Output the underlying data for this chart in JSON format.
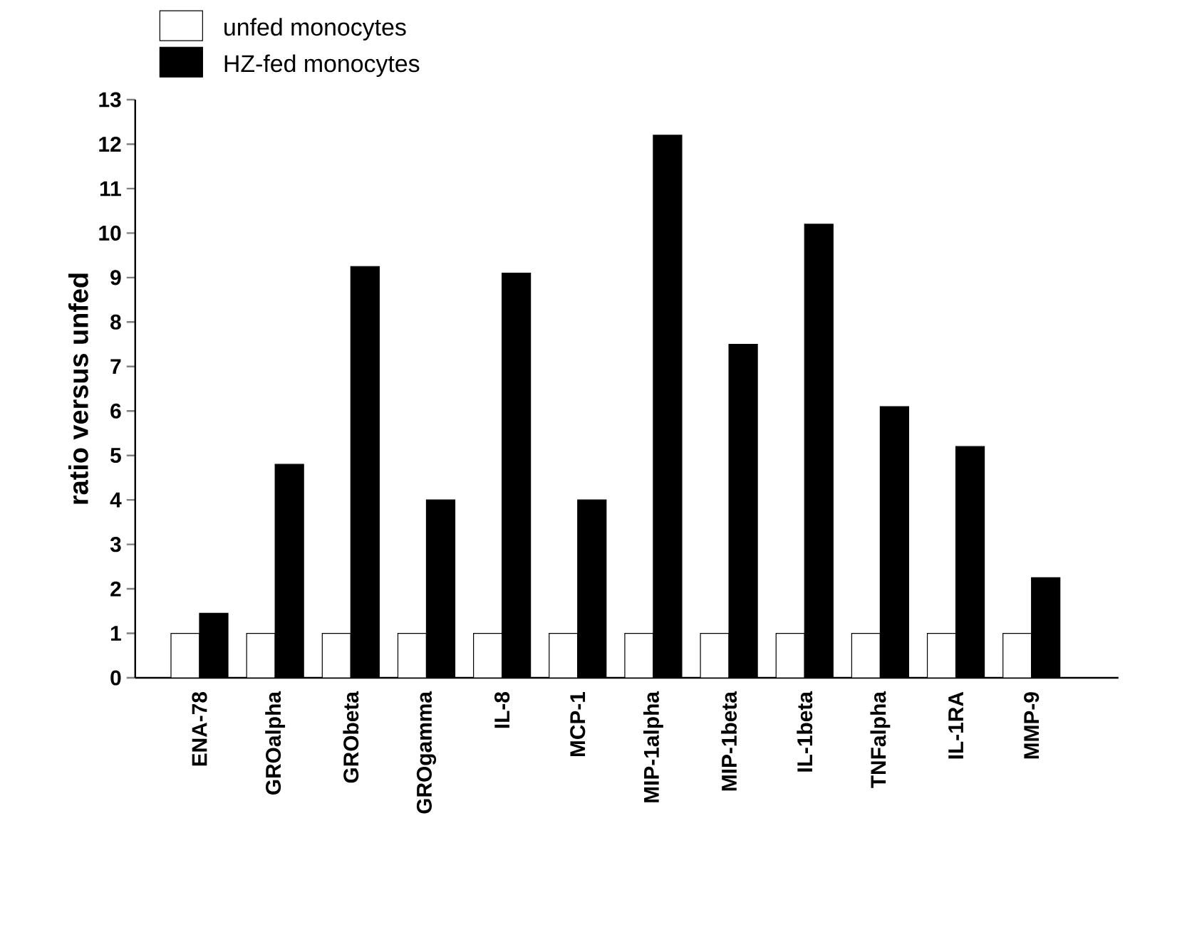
{
  "chart_data": {
    "type": "bar",
    "ylabel": "ratio versus unfed",
    "categories": [
      "ENA-78",
      "GROalpha",
      "GRObeta",
      "GROgamma",
      "IL-8",
      "MCP-1",
      "MIP-1alpha",
      "MIP-1beta",
      "IL-1beta",
      "TNFalpha",
      "IL-1RA",
      "MMP-9"
    ],
    "series": [
      {
        "name": "unfed monocytes",
        "color": "#ffffff",
        "values": [
          1,
          1,
          1,
          1,
          1,
          1,
          1,
          1,
          1,
          1,
          1,
          1
        ]
      },
      {
        "name": "HZ-fed monocytes",
        "color": "#000000",
        "values": [
          1.45,
          4.8,
          9.25,
          4.0,
          9.1,
          4.0,
          12.2,
          7.5,
          10.2,
          6.1,
          5.2,
          2.25
        ]
      }
    ],
    "ylim": [
      0,
      13
    ],
    "yticks": [
      0,
      1,
      2,
      3,
      4,
      5,
      6,
      7,
      8,
      9,
      10,
      11,
      12,
      13
    ],
    "grid": false,
    "legend": "top left"
  }
}
